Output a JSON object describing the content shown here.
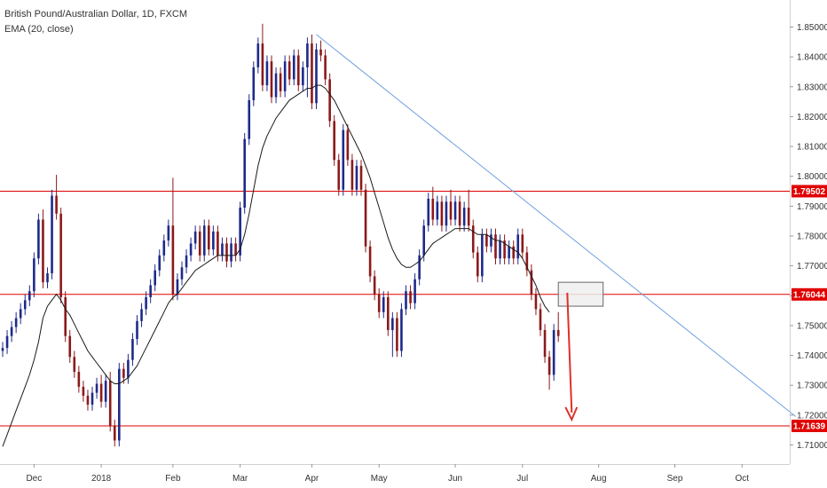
{
  "legend": {
    "symbol_line": "British Pound/Australian Dollar, 1D, FXCM",
    "indicator_line": "EMA (20, close)"
  },
  "colors": {
    "up": "#1e2a8a",
    "down": "#8b1a1a",
    "ema": "#1a1a1a",
    "trendline": "#6fa0e0",
    "level": "#e00000",
    "label_bg": "#e00000",
    "arrow": "#e0302a",
    "zone_fill": "#eeeeee",
    "zone_stroke": "#666666",
    "axis_text": "#333333",
    "axis_line": "#d0d0d0"
  },
  "chart_data": {
    "type": "candlestick",
    "title": "British Pound/Australian Dollar, 1D, FXCM",
    "ylim": [
      1.702,
      1.857
    ],
    "y_ticks": [
      "1.85000",
      "1.84000",
      "1.83000",
      "1.82000",
      "1.81000",
      "1.80000",
      "1.79000",
      "1.78000",
      "1.77000",
      "1.76000",
      "1.75000",
      "1.74000",
      "1.73000",
      "1.72000",
      "1.71000"
    ],
    "x_ticks": [
      {
        "label": "Dec",
        "bar": 7
      },
      {
        "label": "2018",
        "bar": 22
      },
      {
        "label": "Feb",
        "bar": 38
      },
      {
        "label": "Mar",
        "bar": 53
      },
      {
        "label": "Apr",
        "bar": 69
      },
      {
        "label": "May",
        "bar": 84
      },
      {
        "label": "Jun",
        "bar": 101
      },
      {
        "label": "Jul",
        "bar": 116
      },
      {
        "label": "Aug",
        "bar": 133
      },
      {
        "label": "Sep",
        "bar": 150
      },
      {
        "label": "Oct",
        "bar": 165
      }
    ],
    "total_slots": 177,
    "ohlc": [
      [
        1.7415,
        1.7445,
        1.7395,
        1.7425
      ],
      [
        1.7425,
        1.7485,
        1.7405,
        1.7465
      ],
      [
        1.7465,
        1.7515,
        1.7445,
        1.7495
      ],
      [
        1.7495,
        1.7545,
        1.7475,
        1.7525
      ],
      [
        1.7525,
        1.7575,
        1.7505,
        1.7555
      ],
      [
        1.7555,
        1.7605,
        1.7535,
        1.7585
      ],
      [
        1.7585,
        1.7635,
        1.7565,
        1.7615
      ],
      [
        1.7615,
        1.7745,
        1.7595,
        1.7725
      ],
      [
        1.7725,
        1.7875,
        1.7705,
        1.7855
      ],
      [
        1.7855,
        1.7889,
        1.7625,
        1.7645
      ],
      [
        1.7645,
        1.7695,
        1.7625,
        1.7675
      ],
      [
        1.7675,
        1.7955,
        1.7655,
        1.7935
      ],
      [
        1.7935,
        1.8005,
        1.7855,
        1.7875
      ],
      [
        1.7875,
        1.7895,
        1.7575,
        1.7595
      ],
      [
        1.7595,
        1.7615,
        1.7445,
        1.7465
      ],
      [
        1.7465,
        1.7485,
        1.7375,
        1.7395
      ],
      [
        1.7395,
        1.7415,
        1.7325,
        1.7345
      ],
      [
        1.7345,
        1.7365,
        1.7275,
        1.7295
      ],
      [
        1.7295,
        1.7315,
        1.7245,
        1.7265
      ],
      [
        1.7265,
        1.7285,
        1.7215,
        1.7235
      ],
      [
        1.7235,
        1.7295,
        1.7215,
        1.7275
      ],
      [
        1.7275,
        1.7325,
        1.7255,
        1.7305
      ],
      [
        1.7305,
        1.7335,
        1.7225,
        1.7245
      ],
      [
        1.7245,
        1.7335,
        1.7225,
        1.7315
      ],
      [
        1.7315,
        1.7345,
        1.7145,
        1.7165
      ],
      [
        1.7165,
        1.7185,
        1.7095,
        1.7115
      ],
      [
        1.7115,
        1.7375,
        1.7095,
        1.7355
      ],
      [
        1.7355,
        1.7375,
        1.7305,
        1.7325
      ],
      [
        1.7325,
        1.7405,
        1.7305,
        1.7385
      ],
      [
        1.7385,
        1.7475,
        1.7365,
        1.7455
      ],
      [
        1.7455,
        1.7535,
        1.7435,
        1.7515
      ],
      [
        1.7515,
        1.7575,
        1.7495,
        1.7555
      ],
      [
        1.7555,
        1.7615,
        1.7535,
        1.7595
      ],
      [
        1.7595,
        1.7655,
        1.7575,
        1.7635
      ],
      [
        1.7635,
        1.7705,
        1.7615,
        1.7685
      ],
      [
        1.7685,
        1.7755,
        1.7665,
        1.7735
      ],
      [
        1.7735,
        1.7805,
        1.7715,
        1.7785
      ],
      [
        1.7785,
        1.7855,
        1.7765,
        1.7835
      ],
      [
        1.7835,
        1.7995,
        1.7585,
        1.7605
      ],
      [
        1.7605,
        1.7675,
        1.7585,
        1.7655
      ],
      [
        1.7655,
        1.7715,
        1.7635,
        1.7695
      ],
      [
        1.7695,
        1.7755,
        1.7675,
        1.7735
      ],
      [
        1.7735,
        1.7795,
        1.7715,
        1.7775
      ],
      [
        1.7775,
        1.7835,
        1.7755,
        1.7815
      ],
      [
        1.7815,
        1.7835,
        1.7715,
        1.7735
      ],
      [
        1.7735,
        1.7855,
        1.7715,
        1.7835
      ],
      [
        1.7835,
        1.7855,
        1.7735,
        1.7755
      ],
      [
        1.7755,
        1.7835,
        1.7735,
        1.7815
      ],
      [
        1.7815,
        1.7835,
        1.7715,
        1.7735
      ],
      [
        1.7735,
        1.7795,
        1.7715,
        1.7775
      ],
      [
        1.7775,
        1.7795,
        1.7695,
        1.7715
      ],
      [
        1.7715,
        1.7795,
        1.7695,
        1.7775
      ],
      [
        1.7775,
        1.7795,
        1.7715,
        1.7735
      ],
      [
        1.7735,
        1.7915,
        1.7715,
        1.7895
      ],
      [
        1.7895,
        1.8145,
        1.7875,
        1.8125
      ],
      [
        1.8125,
        1.8275,
        1.8105,
        1.8255
      ],
      [
        1.8255,
        1.8385,
        1.8235,
        1.8365
      ],
      [
        1.8365,
        1.8465,
        1.8345,
        1.8445
      ],
      [
        1.8445,
        1.8511,
        1.8285,
        1.8305
      ],
      [
        1.8305,
        1.8405,
        1.8285,
        1.8385
      ],
      [
        1.8385,
        1.8405,
        1.8245,
        1.8265
      ],
      [
        1.8265,
        1.8365,
        1.8245,
        1.8345
      ],
      [
        1.8345,
        1.8365,
        1.8265,
        1.8285
      ],
      [
        1.8285,
        1.8405,
        1.8265,
        1.8385
      ],
      [
        1.8385,
        1.8405,
        1.8305,
        1.8325
      ],
      [
        1.8325,
        1.8425,
        1.8305,
        1.8405
      ],
      [
        1.8405,
        1.8425,
        1.8285,
        1.8305
      ],
      [
        1.8305,
        1.8385,
        1.8285,
        1.8365
      ],
      [
        1.8365,
        1.8465,
        1.8265,
        1.8445
      ],
      [
        1.8445,
        1.8475,
        1.8225,
        1.8245
      ],
      [
        1.8245,
        1.8445,
        1.8225,
        1.8425
      ],
      [
        1.8425,
        1.8455,
        1.8385,
        1.8405
      ],
      [
        1.8405,
        1.8425,
        1.8305,
        1.8325
      ],
      [
        1.8325,
        1.8345,
        1.8165,
        1.8185
      ],
      [
        1.8185,
        1.8205,
        1.8035,
        1.8055
      ],
      [
        1.8055,
        1.8075,
        1.7935,
        1.7955
      ],
      [
        1.7955,
        1.8175,
        1.7935,
        1.8155
      ],
      [
        1.8155,
        1.8175,
        1.8035,
        1.8055
      ],
      [
        1.8055,
        1.8075,
        1.7935,
        1.7955
      ],
      [
        1.7955,
        1.8055,
        1.7935,
        1.8035
      ],
      [
        1.8035,
        1.8055,
        1.7935,
        1.7955
      ],
      [
        1.7955,
        1.7975,
        1.7745,
        1.7765
      ],
      [
        1.7765,
        1.7785,
        1.7645,
        1.7665
      ],
      [
        1.7665,
        1.7685,
        1.7585,
        1.7605
      ],
      [
        1.7605,
        1.7625,
        1.7525,
        1.7545
      ],
      [
        1.7545,
        1.7615,
        1.7525,
        1.7595
      ],
      [
        1.7595,
        1.7615,
        1.7465,
        1.7485
      ],
      [
        1.7485,
        1.7545,
        1.7395,
        1.7525
      ],
      [
        1.7525,
        1.7545,
        1.7395,
        1.7415
      ],
      [
        1.7415,
        1.7575,
        1.7395,
        1.7555
      ],
      [
        1.7555,
        1.7635,
        1.7535,
        1.7615
      ],
      [
        1.7615,
        1.7635,
        1.7555,
        1.7575
      ],
      [
        1.7575,
        1.7675,
        1.7555,
        1.7655
      ],
      [
        1.7655,
        1.7755,
        1.7635,
        1.7735
      ],
      [
        1.7735,
        1.7855,
        1.7715,
        1.7835
      ],
      [
        1.7835,
        1.7945,
        1.7815,
        1.7925
      ],
      [
        1.7925,
        1.7965,
        1.7835,
        1.7855
      ],
      [
        1.7855,
        1.7935,
        1.7835,
        1.7915
      ],
      [
        1.7915,
        1.7935,
        1.7815,
        1.7835
      ],
      [
        1.7835,
        1.7935,
        1.7815,
        1.7915
      ],
      [
        1.7915,
        1.7955,
        1.7835,
        1.7855
      ],
      [
        1.7855,
        1.7935,
        1.7835,
        1.7915
      ],
      [
        1.7915,
        1.7935,
        1.7815,
        1.7835
      ],
      [
        1.7835,
        1.7915,
        1.7815,
        1.7895
      ],
      [
        1.7895,
        1.7955,
        1.7815,
        1.7835
      ],
      [
        1.7835,
        1.7855,
        1.7725,
        1.7745
      ],
      [
        1.7745,
        1.7765,
        1.7645,
        1.7665
      ],
      [
        1.7665,
        1.7825,
        1.7645,
        1.7805
      ],
      [
        1.7805,
        1.7825,
        1.7745,
        1.7765
      ],
      [
        1.7765,
        1.7825,
        1.7745,
        1.7805
      ],
      [
        1.7805,
        1.7825,
        1.7705,
        1.7725
      ],
      [
        1.7725,
        1.7805,
        1.7705,
        1.7785
      ],
      [
        1.7785,
        1.7805,
        1.7705,
        1.7725
      ],
      [
        1.7725,
        1.7785,
        1.7705,
        1.7765
      ],
      [
        1.7765,
        1.7785,
        1.7705,
        1.7725
      ],
      [
        1.7725,
        1.7825,
        1.7705,
        1.7805
      ],
      [
        1.7805,
        1.7825,
        1.7725,
        1.7745
      ],
      [
        1.7745,
        1.7765,
        1.7665,
        1.7685
      ],
      [
        1.7685,
        1.7705,
        1.7585,
        1.7605
      ],
      [
        1.7605,
        1.7625,
        1.7535,
        1.7555
      ],
      [
        1.7555,
        1.7575,
        1.7465,
        1.7485
      ],
      [
        1.7485,
        1.7505,
        1.7375,
        1.7395
      ],
      [
        1.7395,
        1.7415,
        1.7285,
        1.7335
      ],
      [
        1.7335,
        1.7505,
        1.7315,
        1.7485
      ],
      [
        1.7485,
        1.7545,
        1.7445,
        1.7465
      ]
    ],
    "ema20": [
      1.7095,
      1.7135,
      1.7175,
      1.7215,
      1.7255,
      1.7295,
      1.7335,
      1.7385,
      1.7445,
      1.7525,
      1.7565,
      1.7585,
      1.7605,
      1.7585,
      1.7555,
      1.7535,
      1.7505,
      1.7475,
      1.7445,
      1.7415,
      1.7395,
      1.7375,
      1.7355,
      1.7335,
      1.7315,
      1.7305,
      1.7305,
      1.7315,
      1.7325,
      1.7345,
      1.7365,
      1.7395,
      1.7425,
      1.7455,
      1.7485,
      1.7515,
      1.7545,
      1.7575,
      1.7595,
      1.7605,
      1.7625,
      1.7645,
      1.7665,
      1.7685,
      1.7695,
      1.7705,
      1.7715,
      1.7725,
      1.7735,
      1.7735,
      1.7735,
      1.7735,
      1.7735,
      1.7755,
      1.7805,
      1.7875,
      1.7955,
      1.8035,
      1.8095,
      1.8135,
      1.8165,
      1.8195,
      1.8215,
      1.8235,
      1.8255,
      1.8265,
      1.8275,
      1.8285,
      1.8295,
      1.8295,
      1.8305,
      1.8305,
      1.8295,
      1.8275,
      1.8255,
      1.8225,
      1.8195,
      1.8165,
      1.8135,
      1.8105,
      1.8075,
      1.8035,
      1.7995,
      1.7945,
      1.7895,
      1.7845,
      1.7795,
      1.7755,
      1.7725,
      1.7705,
      1.7695,
      1.7695,
      1.7705,
      1.7715,
      1.7735,
      1.7755,
      1.7775,
      1.7785,
      1.7795,
      1.7805,
      1.7815,
      1.7825,
      1.7825,
      1.7825,
      1.7825,
      1.7815,
      1.7805,
      1.7805,
      1.7805,
      1.7795,
      1.7785,
      1.7785,
      1.7775,
      1.7765,
      1.7755,
      1.7745,
      1.7725,
      1.7695,
      1.7665,
      1.7635,
      1.7595,
      1.7565,
      1.7545
    ],
    "levels": [
      {
        "price": 1.79502,
        "label": "1.79502"
      },
      {
        "price": 1.76044,
        "label": "1.76044"
      },
      {
        "price": 1.71639,
        "label": "1.71639"
      }
    ],
    "trendline": {
      "from": {
        "bar": 70,
        "price": 1.8475
      },
      "to": {
        "bar": 177,
        "price": 1.7195
      }
    },
    "zone": {
      "from_bar": 124,
      "to_bar": 134,
      "price_high": 1.7645,
      "price_low": 1.7565
    },
    "arrow": {
      "bar": 126,
      "from_price": 1.761,
      "to_price": 1.7185
    }
  }
}
